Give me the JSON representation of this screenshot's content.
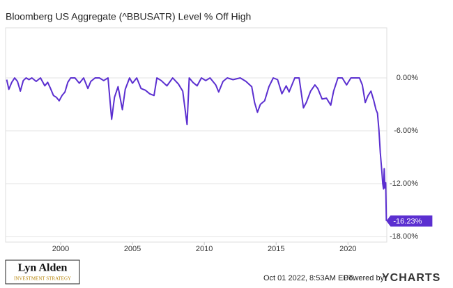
{
  "chart_data": {
    "type": "line",
    "title": "Bloomberg US Aggregate (^BBUSATR) Level % Off High",
    "series": [
      {
        "name": "Bloomberg US Aggregate (^BBUSATR) Level % Off High",
        "color": "#5b2fd0",
        "x": [
          1996.25,
          1996.4,
          1996.6,
          1996.8,
          1997.0,
          1997.2,
          1997.4,
          1997.6,
          1997.8,
          1998.0,
          1998.3,
          1998.6,
          1998.9,
          1999.1,
          1999.3,
          1999.5,
          1999.7,
          1999.9,
          2000.1,
          2000.3,
          2000.5,
          2000.7,
          2001.0,
          2001.3,
          2001.6,
          2001.9,
          2002.1,
          2002.4,
          2002.7,
          2003.0,
          2003.3,
          2003.55,
          2003.75,
          2004.0,
          2004.3,
          2004.5,
          2004.8,
          2005.0,
          2005.3,
          2005.6,
          2005.9,
          2006.2,
          2006.5,
          2006.7,
          2007.0,
          2007.4,
          2007.8,
          2008.2,
          2008.5,
          2008.8,
          2008.95,
          2009.2,
          2009.5,
          2009.8,
          2010.1,
          2010.4,
          2010.8,
          2011.0,
          2011.3,
          2011.6,
          2012.0,
          2012.5,
          2012.9,
          2013.3,
          2013.5,
          2013.7,
          2013.9,
          2014.2,
          2014.5,
          2014.8,
          2015.1,
          2015.4,
          2015.7,
          2015.9,
          2016.3,
          2016.6,
          2016.9,
          2017.1,
          2017.4,
          2017.7,
          2017.9,
          2018.2,
          2018.5,
          2018.8,
          2019.0,
          2019.3,
          2019.6,
          2019.9,
          2020.2,
          2020.5,
          2020.8,
          2021.0,
          2021.2,
          2021.4,
          2021.6,
          2021.8,
          2021.95,
          2022.05,
          2022.15,
          2022.25,
          2022.35,
          2022.42,
          2022.47,
          2022.52,
          2022.57,
          2022.62,
          2022.67
        ],
        "values": [
          -0.2,
          -1.3,
          -0.5,
          0,
          -0.4,
          -1.5,
          -0.3,
          0,
          -0.2,
          0,
          -0.4,
          0,
          -0.9,
          -0.5,
          -1.2,
          -2.0,
          -2.2,
          -2.6,
          -2.0,
          -1.6,
          -0.5,
          0,
          0,
          -0.6,
          0,
          -1.2,
          -0.4,
          0,
          0,
          -0.3,
          0,
          -4.7,
          -2.2,
          -1.0,
          -3.6,
          -1.3,
          0,
          -0.6,
          0,
          -1.2,
          -1.4,
          -1.8,
          -2.0,
          0,
          -0.3,
          -0.9,
          0,
          -0.7,
          -1.5,
          -5.3,
          0,
          -0.5,
          -0.9,
          0,
          -0.3,
          0,
          -0.8,
          -1.6,
          -0.4,
          0,
          -0.2,
          0,
          -0.4,
          -1.0,
          -2.8,
          -3.9,
          -3.0,
          -2.6,
          -1.0,
          0,
          -0.2,
          -1.8,
          -0.9,
          -1.6,
          0,
          0,
          -3.4,
          -2.8,
          -1.5,
          -0.8,
          -1.2,
          -2.4,
          -2.3,
          -3.1,
          -1.5,
          0,
          0,
          -0.8,
          0,
          0,
          0,
          -0.8,
          -2.8,
          -2.0,
          -1.5,
          -2.6,
          -3.6,
          -4.0,
          -5.9,
          -8.5,
          -10.5,
          -12.0,
          -12.6,
          -10.3,
          -12.5,
          -11.9,
          -16.23
        ],
        "end_label": "-16.23%"
      }
    ],
    "xlim": [
      1996.17,
      2022.7
    ],
    "xticks": [
      2000,
      2005,
      2010,
      2015,
      2020
    ],
    "ylim": [
      -18.63,
      5.68
    ],
    "yticks": [
      {
        "value": 0,
        "label": "0.00%"
      },
      {
        "value": -6,
        "label": "-6.00%"
      },
      {
        "value": -12,
        "label": "-12.00%"
      },
      {
        "value": -18,
        "label": "-18.00%"
      }
    ],
    "grid": true,
    "footer": {
      "brand": "Lyn Alden",
      "brand_sub": "INVESTMENT STRATEGY",
      "timestamp": "Oct 01 2022, 8:53AM EDT.",
      "powered": "Powered by",
      "provider": "YCHARTS"
    }
  }
}
